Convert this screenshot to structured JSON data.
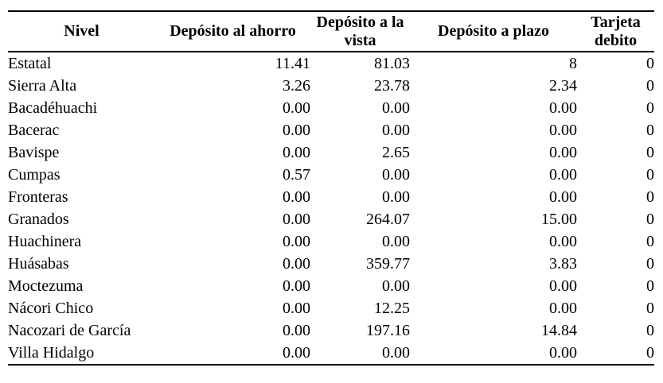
{
  "table": {
    "columns": [
      {
        "key": "nivel",
        "label": "Nivel"
      },
      {
        "key": "ahorro",
        "label": "Depósito al ahorro"
      },
      {
        "key": "vista",
        "label": "Depósito a la vista"
      },
      {
        "key": "plazo",
        "label": "Depósito a plazo"
      },
      {
        "key": "tarjeta",
        "label": "Tarjeta debito"
      }
    ],
    "rows": [
      [
        "Estatal",
        "11.41",
        "81.03",
        "8",
        "0"
      ],
      [
        "Sierra Alta",
        "3.26",
        "23.78",
        "2.34",
        "0"
      ],
      [
        "Bacadéhuachi",
        "0.00",
        "0.00",
        "0.00",
        "0"
      ],
      [
        "Bacerac",
        "0.00",
        "0.00",
        "0.00",
        "0"
      ],
      [
        "Bavispe",
        "0.00",
        "2.65",
        "0.00",
        "0"
      ],
      [
        "Cumpas",
        "0.57",
        "0.00",
        "0.00",
        "0"
      ],
      [
        "Fronteras",
        "0.00",
        "0.00",
        "0.00",
        "0"
      ],
      [
        "Granados",
        "0.00",
        "264.07",
        "15.00",
        "0"
      ],
      [
        "Huachinera",
        "0.00",
        "0.00",
        "0.00",
        "0"
      ],
      [
        "Huásabas",
        "0.00",
        "359.77",
        "3.83",
        "0"
      ],
      [
        "Moctezuma",
        "0.00",
        "0.00",
        "0.00",
        "0"
      ],
      [
        "Nácori Chico",
        "0.00",
        "12.25",
        "0.00",
        "0"
      ],
      [
        "Nacozari de García",
        "0.00",
        "197.16",
        "14.84",
        "0"
      ],
      [
        "Villa Hidalgo",
        "0.00",
        "0.00",
        "0.00",
        "0"
      ]
    ]
  },
  "colors": {
    "text": "#000000",
    "rule": "#000000",
    "background": "#ffffff"
  }
}
